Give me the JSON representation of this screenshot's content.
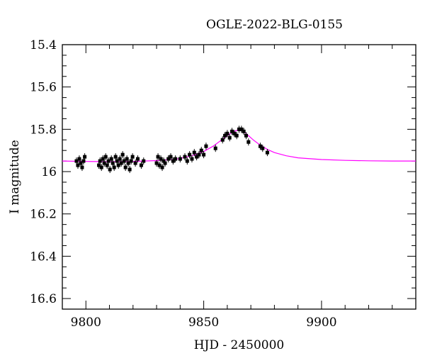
{
  "chart_data": {
    "type": "scatter",
    "title": "OGLE-2022-BLG-0155",
    "xlabel": "HJD - 2450000",
    "ylabel": "I magnitude",
    "xlim": [
      9790,
      9940
    ],
    "ylim": [
      15.4,
      16.65
    ],
    "y_inverted": true,
    "x_ticks": [
      9800,
      9850,
      9900
    ],
    "x_tick_labels": [
      "9800",
      "9850",
      "9900"
    ],
    "y_ticks": [
      15.4,
      15.6,
      15.8,
      16.0,
      16.2,
      16.4,
      16.6
    ],
    "y_tick_labels": [
      "15.4",
      "15.6",
      "15.8",
      "16",
      "16.2",
      "16.4",
      "16.6"
    ],
    "series": [
      {
        "type": "scatter",
        "color": "#000000",
        "x": [
          9796,
          9796.6,
          9797.2,
          9797.8,
          9798.4,
          9799,
          9799.5,
          9805.5,
          9806,
          9806.6,
          9807.2,
          9807.8,
          9808.4,
          9809,
          9809.6,
          9810.2,
          9810.8,
          9811.4,
          9812,
          9812.6,
          9813.2,
          9813.8,
          9814.4,
          9815,
          9815.6,
          9816.2,
          9816.8,
          9817.4,
          9818,
          9818.6,
          9819.2,
          9819.8,
          9821,
          9822,
          9823.5,
          9824.5,
          9830,
          9830.6,
          9831.2,
          9831.8,
          9832.4,
          9833,
          9833.6,
          9835,
          9836,
          9837,
          9838,
          9840,
          9842,
          9843,
          9844,
          9845,
          9846,
          9847,
          9848,
          9849,
          9850,
          9851,
          9855,
          9858,
          9859,
          9860,
          9861,
          9862,
          9863,
          9864,
          9865,
          9866,
          9867,
          9868,
          9869,
          9874,
          9875,
          9877
        ],
        "y": [
          15.95,
          15.97,
          15.94,
          15.96,
          15.98,
          15.95,
          15.93,
          15.97,
          15.95,
          15.98,
          15.94,
          15.96,
          15.93,
          15.97,
          15.95,
          15.99,
          15.94,
          15.96,
          15.98,
          15.93,
          15.95,
          15.97,
          15.94,
          15.96,
          15.92,
          15.95,
          15.98,
          15.94,
          15.96,
          15.99,
          15.95,
          15.93,
          15.96,
          15.94,
          15.97,
          15.95,
          15.96,
          15.93,
          15.97,
          15.94,
          15.98,
          15.95,
          15.96,
          15.94,
          15.93,
          15.95,
          15.94,
          15.94,
          15.93,
          15.95,
          15.92,
          15.94,
          15.91,
          15.93,
          15.92,
          15.9,
          15.92,
          15.88,
          15.89,
          15.85,
          15.83,
          15.82,
          15.84,
          15.81,
          15.82,
          15.83,
          15.8,
          15.8,
          15.81,
          15.83,
          15.86,
          15.88,
          15.89,
          15.91
        ]
      },
      {
        "type": "line",
        "color": "#ff00ff",
        "name": "",
        "x": [
          9790,
          9800,
          9810,
          9820,
          9830,
          9838,
          9845,
          9850,
          9854,
          9857,
          9860,
          9862,
          9864,
          9865,
          9866,
          9867,
          9869,
          9871,
          9874,
          9877,
          9880,
          9885,
          9890,
          9900,
          9910,
          9920,
          9930,
          9940
        ],
        "y": [
          15.95,
          15.952,
          15.953,
          15.952,
          15.948,
          15.942,
          15.925,
          15.905,
          15.88,
          15.855,
          15.83,
          15.815,
          15.805,
          15.804,
          15.805,
          15.811,
          15.83,
          15.85,
          15.875,
          15.895,
          15.91,
          15.925,
          15.935,
          15.943,
          15.947,
          15.949,
          15.95,
          15.95
        ]
      }
    ],
    "grid": false
  }
}
